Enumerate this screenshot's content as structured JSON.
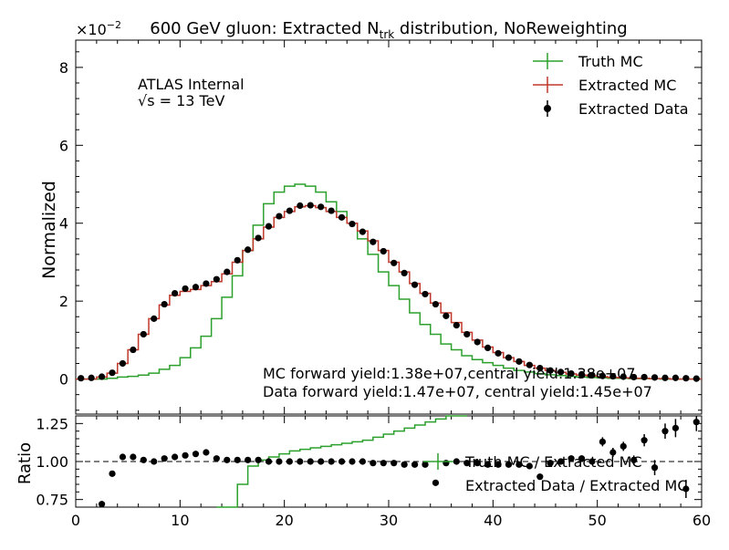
{
  "chart_data": {
    "type": "line",
    "title_main": "600 GeV gluon: Extracted N",
    "title_sub": "trk",
    "title_tail": " distribution, NoReweighting",
    "top": {
      "ylabel": "Normalized",
      "exponent_base": "×10",
      "exponent_power": "−2",
      "xlim": [
        0,
        60
      ],
      "ylim": [
        -0.9,
        8.7
      ],
      "yticks": [
        0,
        2,
        4,
        6,
        8
      ],
      "ytick_labels": [
        "0",
        "2",
        "4",
        "6",
        "8"
      ],
      "annotations": {
        "experiment": "ATLAS Internal",
        "sqrt_symbol": "√s",
        "energy": " =  13 TeV",
        "mc_yield": "MC forward yield:1.38e+07,central yield:1.38e+07",
        "data_yield": "Data forward yield:1.47e+07, central yield:1.45e+07"
      },
      "legend": [
        "Truth MC",
        "Extracted MC",
        "Extracted Data"
      ],
      "series": [
        {
          "name": "Truth MC",
          "color": "#2ca02c",
          "style": "step",
          "values": [
            0.0,
            0.0,
            0.0,
            0.02,
            0.05,
            0.07,
            0.1,
            0.15,
            0.25,
            0.35,
            0.55,
            0.8,
            1.1,
            1.55,
            2.1,
            2.65,
            3.3,
            3.95,
            4.5,
            4.8,
            4.95,
            5.0,
            4.95,
            4.8,
            4.55,
            4.3,
            4.0,
            3.6,
            3.2,
            2.75,
            2.4,
            2.05,
            1.7,
            1.4,
            1.15,
            0.9,
            0.75,
            0.6,
            0.5,
            0.42,
            0.35,
            0.28,
            0.22,
            0.18,
            0.14,
            0.11,
            0.09,
            0.07,
            0.05,
            0.04,
            0.03,
            0.02,
            0.02,
            0.01,
            0.01,
            0.01,
            0.0,
            0.0,
            0.0,
            0.0
          ]
        },
        {
          "name": "Extracted MC",
          "color": "#c0392b",
          "style": "step",
          "values": [
            0.0,
            0.0,
            0.05,
            0.15,
            0.4,
            0.75,
            1.15,
            1.55,
            1.9,
            2.15,
            2.25,
            2.3,
            2.4,
            2.5,
            2.7,
            3.0,
            3.3,
            3.6,
            3.9,
            4.15,
            4.3,
            4.42,
            4.45,
            4.4,
            4.3,
            4.15,
            4.0,
            3.8,
            3.55,
            3.3,
            3.0,
            2.75,
            2.45,
            2.2,
            1.95,
            1.7,
            1.45,
            1.2,
            1.0,
            0.82,
            0.68,
            0.55,
            0.45,
            0.35,
            0.28,
            0.22,
            0.17,
            0.13,
            0.1,
            0.08,
            0.06,
            0.04,
            0.03,
            0.02,
            0.02,
            0.01,
            0.01,
            0.0,
            0.0,
            0.0
          ]
        },
        {
          "name": "Extracted Data",
          "color": "#000000",
          "style": "points",
          "values": [
            0.02,
            0.03,
            0.06,
            0.16,
            0.4,
            0.75,
            1.15,
            1.55,
            1.92,
            2.2,
            2.32,
            2.36,
            2.45,
            2.56,
            2.75,
            3.05,
            3.32,
            3.62,
            3.92,
            4.18,
            4.32,
            4.45,
            4.46,
            4.42,
            4.32,
            4.15,
            3.98,
            3.78,
            3.52,
            3.28,
            2.98,
            2.72,
            2.42,
            2.18,
            1.92,
            1.62,
            1.38,
            1.15,
            0.95,
            0.8,
            0.66,
            0.55,
            0.45,
            0.36,
            0.28,
            0.22,
            0.18,
            0.14,
            0.12,
            0.1,
            0.08,
            0.07,
            0.06,
            0.05,
            0.05,
            0.04,
            0.03,
            0.03,
            0.02,
            0.01
          ]
        }
      ]
    },
    "ratio": {
      "ylabel": "Ratio",
      "xlabel": "",
      "xlim": [
        0,
        60
      ],
      "ylim": [
        0.7,
        1.3
      ],
      "xticks": [
        0,
        10,
        20,
        30,
        40,
        50,
        60
      ],
      "xtick_labels": [
        "0",
        "10",
        "20",
        "30",
        "40",
        "50",
        "60"
      ],
      "yticks": [
        0.75,
        1.0,
        1.25
      ],
      "ytick_labels": [
        "0.75",
        "1.00",
        "1.25"
      ],
      "reference_line": 1.0,
      "legend": [
        "Truth MC / Extracted MC",
        "Extracted Data / Extracted MC"
      ],
      "series": [
        {
          "name": "Truth MC / Extracted MC",
          "color": "#2ca02c",
          "style": "step",
          "x_start": 13.5,
          "values": [
            0.5,
            0.6,
            0.85,
            0.97,
            1.01,
            1.03,
            1.05,
            1.07,
            1.08,
            1.09,
            1.1,
            1.11,
            1.12,
            1.13,
            1.14,
            1.16,
            1.18,
            1.2,
            1.22,
            1.24,
            1.26,
            1.28,
            1.3,
            1.32
          ]
        },
        {
          "name": "Extracted Data / Extracted MC",
          "color": "#000000",
          "style": "points",
          "x": [
            2.5,
            3.5,
            4.5,
            5.5,
            6.5,
            7.5,
            8.5,
            9.5,
            10.5,
            11.5,
            12.5,
            13.5,
            14.5,
            15.5,
            16.5,
            17.5,
            18.5,
            19.5,
            20.5,
            21.5,
            22.5,
            23.5,
            24.5,
            25.5,
            26.5,
            27.5,
            28.5,
            29.5,
            30.5,
            31.5,
            32.5,
            33.5,
            34.5,
            35.5,
            36.5,
            37.5,
            38.5,
            39.5,
            40.5,
            41.5,
            42.5,
            43.5,
            44.5,
            45.5,
            46.5,
            47.5,
            48.5,
            49.5,
            50.5,
            51.5,
            52.5,
            53.5,
            54.5,
            55.5,
            56.5,
            57.5,
            58.5,
            59.5
          ],
          "values": [
            0.72,
            0.92,
            1.03,
            1.03,
            1.01,
            1.0,
            1.02,
            1.03,
            1.04,
            1.05,
            1.06,
            1.02,
            1.01,
            1.01,
            1.01,
            1.01,
            1.0,
            1.0,
            1.0,
            1.0,
            1.0,
            1.0,
            1.0,
            1.0,
            1.0,
            1.0,
            0.99,
            0.99,
            0.99,
            0.98,
            0.98,
            0.98,
            0.86,
            0.99,
            1.0,
            0.99,
            0.99,
            0.98,
            0.98,
            0.98,
            0.98,
            0.97,
            0.9,
            0.99,
            1.0,
            1.02,
            1.02,
            1.0,
            1.13,
            1.06,
            1.1,
            1.01,
            1.14,
            0.96,
            1.2,
            1.22,
            0.82,
            1.26
          ],
          "errors": [
            0.02,
            0.02,
            0.02,
            0.02,
            0.01,
            0.01,
            0.01,
            0.01,
            0.01,
            0.01,
            0.01,
            0.01,
            0.01,
            0.01,
            0.01,
            0.01,
            0.01,
            0.01,
            0.01,
            0.01,
            0.01,
            0.01,
            0.01,
            0.01,
            0.01,
            0.01,
            0.01,
            0.01,
            0.01,
            0.01,
            0.01,
            0.01,
            0.02,
            0.01,
            0.01,
            0.01,
            0.01,
            0.01,
            0.01,
            0.01,
            0.01,
            0.01,
            0.02,
            0.02,
            0.02,
            0.02,
            0.02,
            0.02,
            0.03,
            0.03,
            0.03,
            0.03,
            0.04,
            0.05,
            0.05,
            0.06,
            0.06,
            0.06
          ]
        }
      ]
    }
  }
}
